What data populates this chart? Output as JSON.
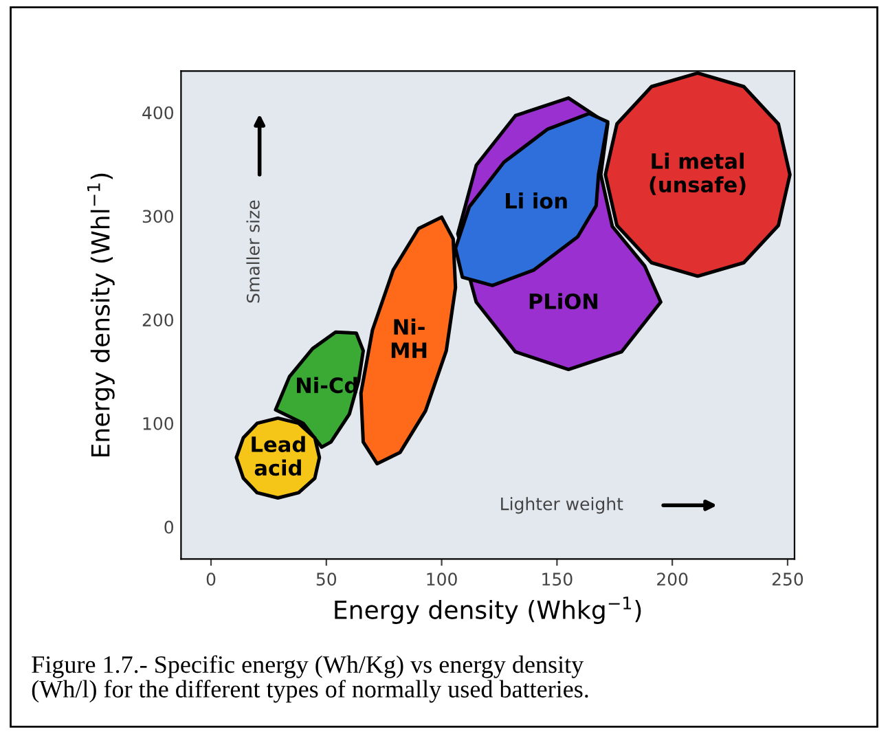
{
  "chart_data": {
    "type": "area",
    "xlabel": "Energy density (Whkg$^{−1}$)",
    "ylabel": "Energy density (Whl$^{−1}$)",
    "xlim": [
      -13,
      253
    ],
    "ylim": [
      -31,
      440
    ],
    "xticks": [
      0,
      50,
      100,
      150,
      200,
      250
    ],
    "yticks": [
      0,
      100,
      200,
      300,
      400
    ],
    "series": [
      {
        "name": "Ni-Cd",
        "color": "#3aaa35",
        "x": [
          63,
          66,
          64,
          60,
          52,
          48,
          40,
          28,
          34,
          44,
          54
        ],
        "values": [
          187,
          170,
          141,
          109,
          82,
          77,
          100,
          113,
          145,
          172,
          188
        ]
      },
      {
        "name": "Lead\nacid",
        "color": "#f5c518",
        "x": [
          47,
          45,
          38,
          29,
          20,
          14,
          11,
          14,
          20,
          29,
          38,
          45
        ],
        "values": [
          67,
          86,
          100,
          105,
          100,
          86,
          67,
          47,
          33,
          28,
          33,
          47
        ]
      },
      {
        "name": "Ni-\nMH",
        "color": "#ff6a1a",
        "x": [
          100,
          105,
          106,
          102,
          93,
          82,
          72,
          66,
          65,
          70,
          79,
          90
        ],
        "values": [
          299,
          278,
          231,
          170,
          112,
          72,
          61,
          82,
          129,
          190,
          248,
          288
        ]
      },
      {
        "name": "PLiON",
        "color": "#9b30d0",
        "x": [
          155,
          132,
          115,
          107,
          115,
          132,
          155,
          178,
          195,
          188,
          174,
          169,
          172
        ],
        "values": [
          414,
          397,
          349,
          283,
          217,
          169,
          152,
          169,
          217,
          252,
          290,
          340,
          389
        ]
      },
      {
        "name": "Li ion",
        "color": "#2f6fdc",
        "x": [
          172,
          168,
          167,
          159,
          140,
          122,
          109,
          106,
          112,
          127,
          146,
          164
        ],
        "values": [
          391,
          340,
          310,
          280,
          248,
          233,
          241,
          269,
          309,
          352,
          384,
          399
        ]
      },
      {
        "name": "Li metal\n(unsafe)",
        "color": "#e03030",
        "x": [
          251,
          246,
          231,
          211,
          191,
          176,
          171,
          176,
          191,
          211,
          231,
          246
        ],
        "values": [
          340,
          389,
          425,
          438,
          425,
          389,
          340,
          291,
          255,
          242,
          255,
          291
        ]
      }
    ],
    "annotations": [
      "Smaller size",
      "Lighter weight",
      "Figure 1.7.- Specific energy (Wh/Kg) vs energy density\n(Wh/l) for the different types of normally used batteries."
    ]
  }
}
